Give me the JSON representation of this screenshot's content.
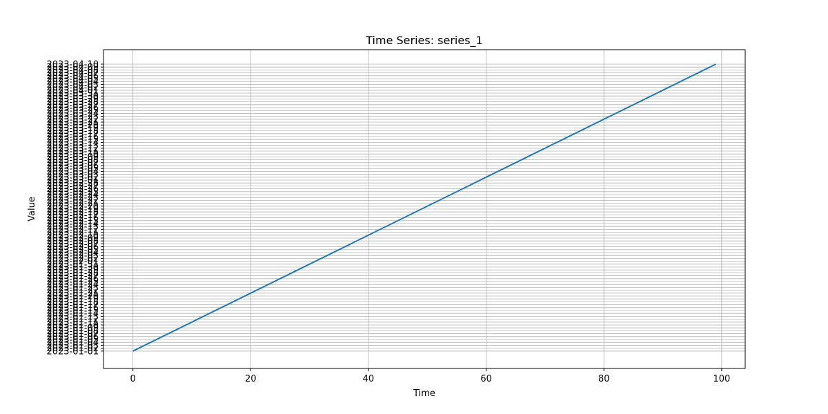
{
  "chart_data": {
    "type": "line",
    "title": "Time Series: series_1",
    "xlabel": "Time",
    "ylabel": "Value",
    "xlim": [
      -5,
      104
    ],
    "ylim": [
      "2022-12-26",
      "2023-04-15"
    ],
    "x_ticks": [
      "0",
      "20",
      "40",
      "60",
      "80",
      "100"
    ],
    "y_tick_start": "2023-01-01",
    "y_tick_end": "2023-04-10",
    "grid": true,
    "legend": "none",
    "series": [
      {
        "color": "#1f77b4",
        "points": [
          {
            "x": 0,
            "y": "2023-01-01"
          },
          {
            "x": 99,
            "y": "2023-04-10"
          }
        ]
      }
    ]
  },
  "colors": {
    "line": "#1f77b4",
    "grid": "#b0b0b0",
    "axes": "#000000"
  }
}
